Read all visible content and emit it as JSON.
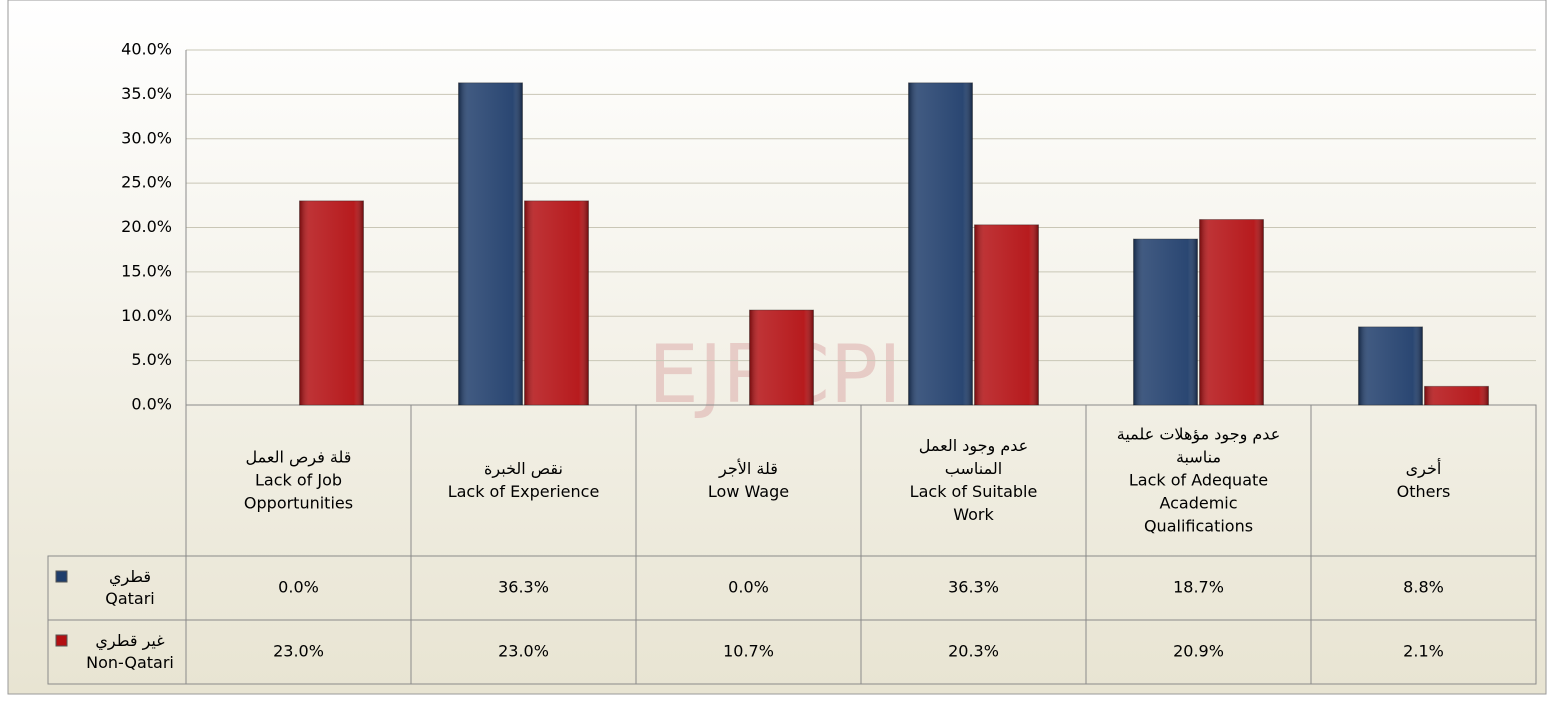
{
  "chart_data": {
    "type": "bar",
    "watermark": "EJRCPI",
    "categories": [
      "قلة فرص العمل\nLack of Job\nOpportunities",
      "نقص الخبرة\nLack of Experience",
      "قلة الأجر\nLow Wage",
      "عدم وجود العمل\nالمناسب\nLack of Suitable\nWork",
      "عدم وجود مؤهلات علمية\nمناسبة\nLack of Adequate\nAcademic\nQualifications",
      "أخرى\nOthers"
    ],
    "series": [
      {
        "name": "قطري\nQatari",
        "color": "#1f3d6b",
        "values": [
          0,
          36.3,
          0,
          36.3,
          18.7,
          8.8
        ],
        "value_labels": [
          "0.0%",
          "36.3%",
          "0.0%",
          "36.3%",
          "18.7%",
          "8.8%"
        ]
      },
      {
        "name": "غير قطري\nNon-Qatari",
        "color": "#b30f12",
        "values": [
          23.0,
          23.0,
          10.7,
          20.3,
          20.9,
          2.1
        ],
        "value_labels": [
          "23.0%",
          "23.0%",
          "10.7%",
          "20.3%",
          "20.9%",
          "2.1%"
        ]
      }
    ],
    "ylim": [
      0,
      40
    ],
    "yticks": [
      {
        "value": 0,
        "label": "0.0%"
      },
      {
        "value": 5,
        "label": "5.0%"
      },
      {
        "value": 10,
        "label": "10.0%"
      },
      {
        "value": 15,
        "label": "15.0%"
      },
      {
        "value": 20,
        "label": "20.0%"
      },
      {
        "value": 25,
        "label": "25.0%"
      },
      {
        "value": 30,
        "label": "30.0%"
      },
      {
        "value": 35,
        "label": "35.0%"
      },
      {
        "value": 40,
        "label": "40.0%"
      }
    ],
    "grid": true
  }
}
